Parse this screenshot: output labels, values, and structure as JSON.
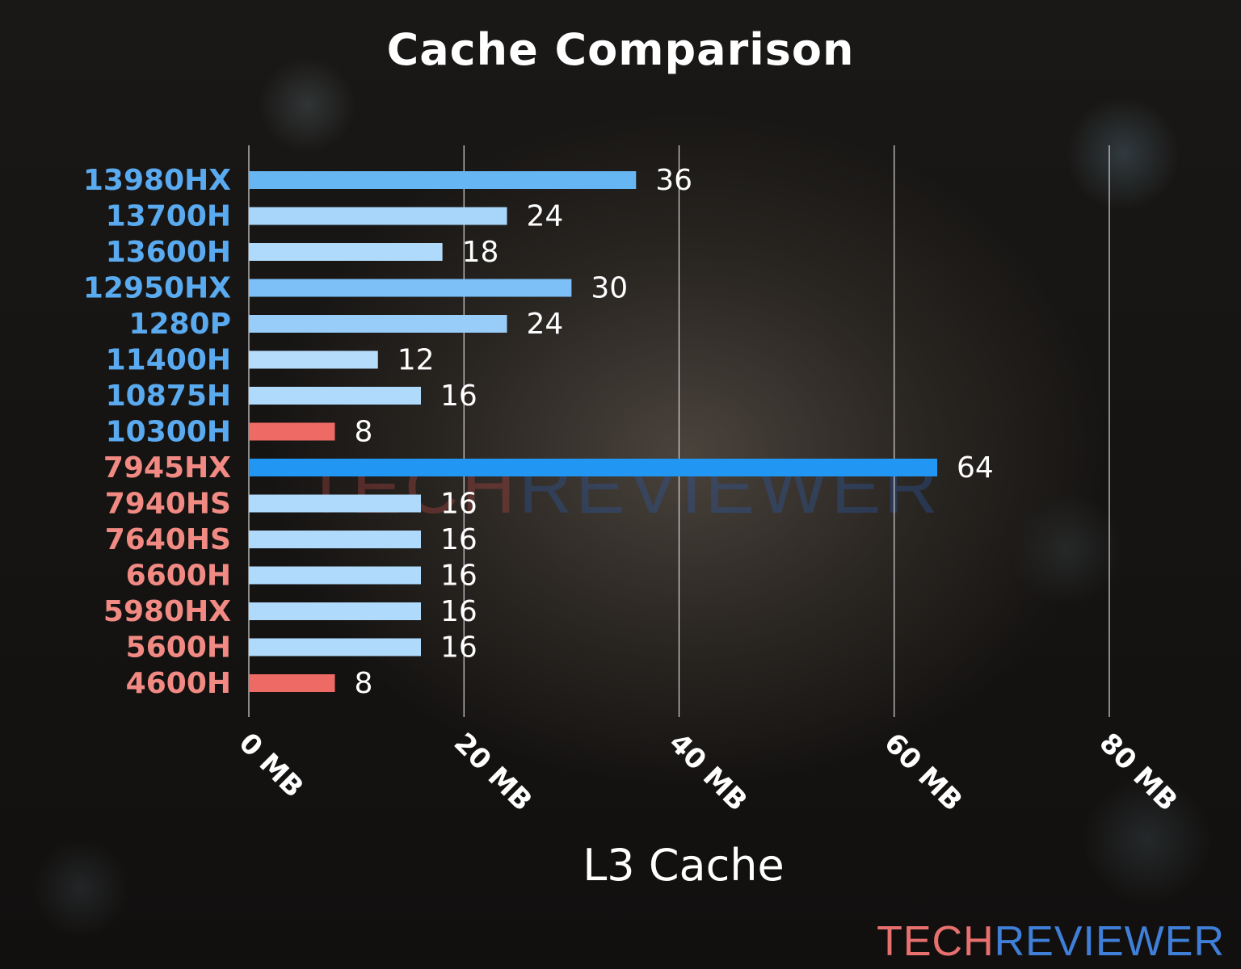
{
  "chart_data": {
    "type": "bar",
    "orientation": "horizontal",
    "title": "Cache Comparison",
    "xlabel": "L3 Cache",
    "ylabel": "",
    "xlim": [
      0,
      80
    ],
    "xticks": [
      0,
      20,
      40,
      60,
      80
    ],
    "xtick_labels": [
      "0 MB",
      "20 MB",
      "40 MB",
      "60 MB",
      "80 MB"
    ],
    "grid": "vertical",
    "categories": [
      "13980HX",
      "13700H",
      "13600H",
      "12950HX",
      "1280P",
      "11400H",
      "10875H",
      "10300H",
      "7945HX",
      "7940HS",
      "7640HS",
      "6600H",
      "5980HX",
      "5600H",
      "4600H"
    ],
    "values": [
      36,
      24,
      18,
      30,
      24,
      12,
      16,
      8,
      64,
      16,
      16,
      16,
      16,
      16,
      8
    ],
    "label_colors": [
      "#5aaaf0",
      "#5aaaf0",
      "#5aaaf0",
      "#5aaaf0",
      "#5aaaf0",
      "#5aaaf0",
      "#5aaaf0",
      "#5aaaf0",
      "#f28a84",
      "#f28a84",
      "#f28a84",
      "#f28a84",
      "#f28a84",
      "#f28a84",
      "#f28a84"
    ],
    "bar_colors": [
      "#66b6f4",
      "#a8d6fb",
      "#b0dafb",
      "#7cc0f7",
      "#98ccf9",
      "#b6dcfc",
      "#b0dafb",
      "#ee6a64",
      "#2196f3",
      "#b0dafb",
      "#b0dafb",
      "#b0dafb",
      "#b0dafb",
      "#b0dafb",
      "#ee6a64"
    ]
  },
  "watermark": {
    "tech": "TECH",
    "reviewer": "REVIEWER"
  },
  "colors": {
    "background": "#151311",
    "text": "#ffffff",
    "grid": "#d8d8d8",
    "brand_red": "#e8706e",
    "brand_blue": "#3f7fd8"
  }
}
